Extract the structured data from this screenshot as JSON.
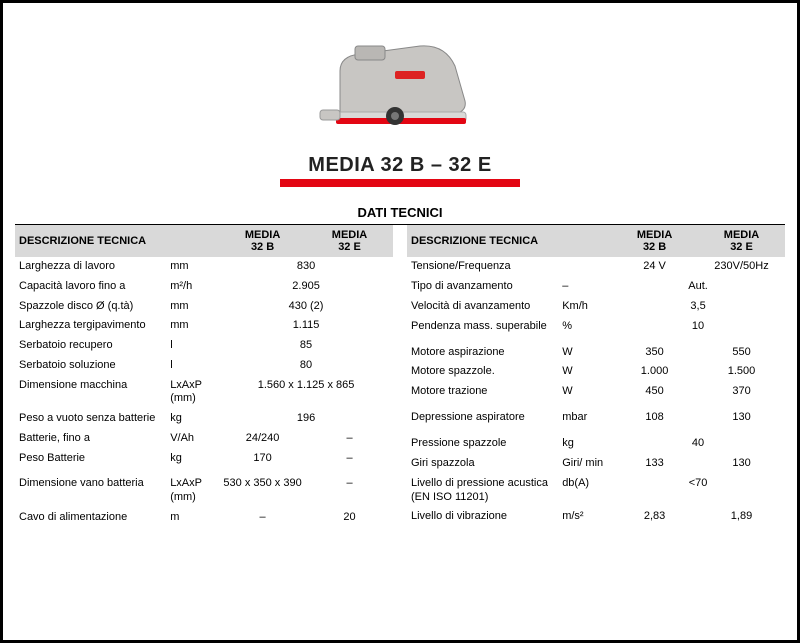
{
  "title": "MEDIA 32 B – 32 E",
  "section_title": "DATI TECNICI",
  "image_colors": {
    "body": "#c8c6c3",
    "accent": "#d22",
    "base": "#d9d9d7"
  },
  "left_table": {
    "headers": [
      "DESCRIZIONE TECNICA",
      "",
      "MEDIA 32 B",
      "MEDIA 32 E"
    ],
    "rows": [
      {
        "desc": "Larghezza di lavoro",
        "unit": "mm",
        "v1": "830",
        "v2": "",
        "span": true
      },
      {
        "desc": "Capacità lavoro fino a",
        "unit": "m²/h",
        "v1": "2.905",
        "v2": "",
        "span": true
      },
      {
        "desc": "Spazzole disco Ø (q.tà)",
        "unit": "mm",
        "v1": "430 (2)",
        "v2": "",
        "span": true
      },
      {
        "desc": "Larghezza tergipavimento",
        "unit": "mm",
        "v1": "1.115",
        "v2": "",
        "span": true
      },
      {
        "desc": "Serbatoio recupero",
        "unit": "l",
        "v1": "85",
        "v2": "",
        "span": true
      },
      {
        "desc": "Serbatoio soluzione",
        "unit": "l",
        "v1": "80",
        "v2": "",
        "span": true
      },
      {
        "desc": "Dimensione macchina",
        "unit": "LxAxP (mm)",
        "v1": "1.560 x 1.125 x 865",
        "v2": "",
        "span": true
      },
      {
        "desc": "Peso a vuoto senza batterie",
        "unit": "kg",
        "v1": "196",
        "v2": "",
        "span": true
      },
      {
        "desc": "Batterie, fino a",
        "unit": "V/Ah",
        "v1": "24/240",
        "v2": "–"
      },
      {
        "desc": "Peso Batterie",
        "unit": "kg",
        "v1": "170",
        "v2": "–"
      },
      {
        "gap": true
      },
      {
        "desc": "Dimensione vano batteria",
        "unit": "LxAxP (mm)",
        "v1": "530 x 350 x 390",
        "v2": "–"
      },
      {
        "desc": "Cavo di alimentazione",
        "unit": "m",
        "v1": "–",
        "v2": "20"
      }
    ]
  },
  "right_table": {
    "headers": [
      "DESCRIZIONE TECNICA",
      "",
      "MEDIA 32 B",
      "MEDIA 32 E"
    ],
    "rows": [
      {
        "desc": "Tensione/Frequenza",
        "unit": "",
        "v1": "24 V",
        "v2": "230V/50Hz"
      },
      {
        "desc": "Tipo di avanzamento",
        "unit": "–",
        "v1": "Aut.",
        "v2": "",
        "span": true,
        "alignRight": true
      },
      {
        "desc": "Velocità di avanzamento",
        "unit": "Km/h",
        "v1": "3,5",
        "v2": "",
        "span": true
      },
      {
        "desc": "Pendenza mass. superabile",
        "unit": "%",
        "v1": "10",
        "v2": "",
        "span": true
      },
      {
        "gap": true
      },
      {
        "desc": "Motore aspirazione",
        "unit": "W",
        "v1": "350",
        "v2": "550"
      },
      {
        "desc": "Motore spazzole.",
        "unit": "W",
        "v1": "1.000",
        "v2": "1.500"
      },
      {
        "desc": "Motore trazione",
        "unit": "W",
        "v1": "450",
        "v2": "370"
      },
      {
        "gap": true
      },
      {
        "desc": "Depressione aspiratore",
        "unit": "mbar",
        "v1": "108",
        "v2": "130"
      },
      {
        "gap": true
      },
      {
        "desc": "Pressione spazzole",
        "unit": "kg",
        "v1": "40",
        "v2": "",
        "span": true
      },
      {
        "desc": "Giri spazzola",
        "unit": "Giri/ min",
        "v1": "133",
        "v2": "130"
      },
      {
        "desc": "Livello di pressione acustica (EN ISO 11201)",
        "unit": "db(A)",
        "v1": "<70",
        "v2": "",
        "span": true
      },
      {
        "desc": "Livello di vibrazione",
        "unit": "m/s²",
        "v1": "2,83",
        "v2": "1,89"
      }
    ]
  }
}
